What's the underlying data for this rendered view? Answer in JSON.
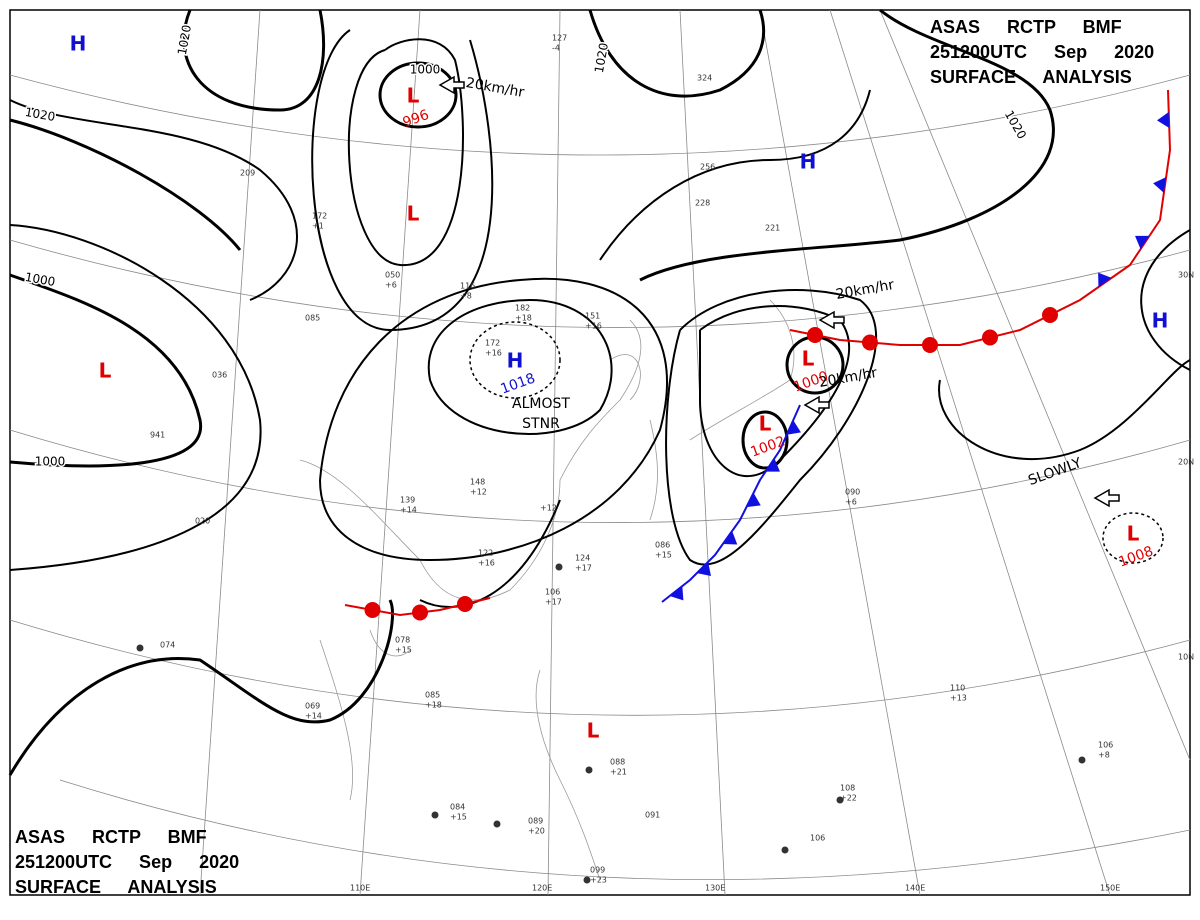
{
  "header": {
    "lines": [
      "ASAS RCTP BMF",
      "251200UTC Sep 2020",
      "SURFACE ANALYSIS"
    ]
  },
  "footer": {
    "lines": [
      "ASAS RCTP BMF",
      "251200UTC Sep 2020",
      "SURFACE ANALYSIS"
    ]
  },
  "pressure_centers": [
    {
      "symbol": "H"
    },
    {
      "symbol": "L",
      "value": "996"
    },
    {
      "symbol": "L"
    },
    {
      "symbol": "L"
    },
    {
      "symbol": "H",
      "value": "1018"
    },
    {
      "symbol": "H"
    },
    {
      "symbol": "L",
      "value": "1000"
    },
    {
      "symbol": "L",
      "value": "1002"
    },
    {
      "symbol": "H"
    },
    {
      "symbol": "L",
      "value": "1008"
    },
    {
      "symbol": "L"
    }
  ],
  "isobar_labels": [
    "1020",
    "1000",
    "1020",
    "1000",
    "1000",
    "1020",
    "1020"
  ],
  "annotations": [
    "20km/hr",
    "ALMOST",
    "STNR",
    "20km/hr",
    "20km/hr",
    "SLOWLY"
  ],
  "latitude_labels": [
    "30N",
    "20N",
    "10N"
  ],
  "longitude_labels": [
    "110E",
    "120E",
    "130E",
    "140E",
    "150E"
  ],
  "stations": [
    "172",
    "+16",
    "182",
    "+18",
    "151",
    "+16",
    "148",
    "+12",
    "139",
    "+14",
    "122",
    "+16",
    "124",
    "+17",
    "106",
    "+17",
    "078",
    "+15",
    "085",
    "+18",
    "069",
    "+14",
    "020",
    "074",
    "941",
    "036",
    "116",
    "+8",
    "085",
    "172",
    "+1",
    "209",
    "050",
    "+6",
    "127",
    "-4",
    "324",
    "256",
    "228",
    "221",
    "086",
    "+15",
    "090",
    "+6",
    "110",
    "+13",
    "108",
    "+22",
    "106",
    "+8",
    "084",
    "+15",
    "089",
    "+20",
    "099",
    "+23",
    "088",
    "+21",
    "091",
    "106",
    "+12"
  ]
}
